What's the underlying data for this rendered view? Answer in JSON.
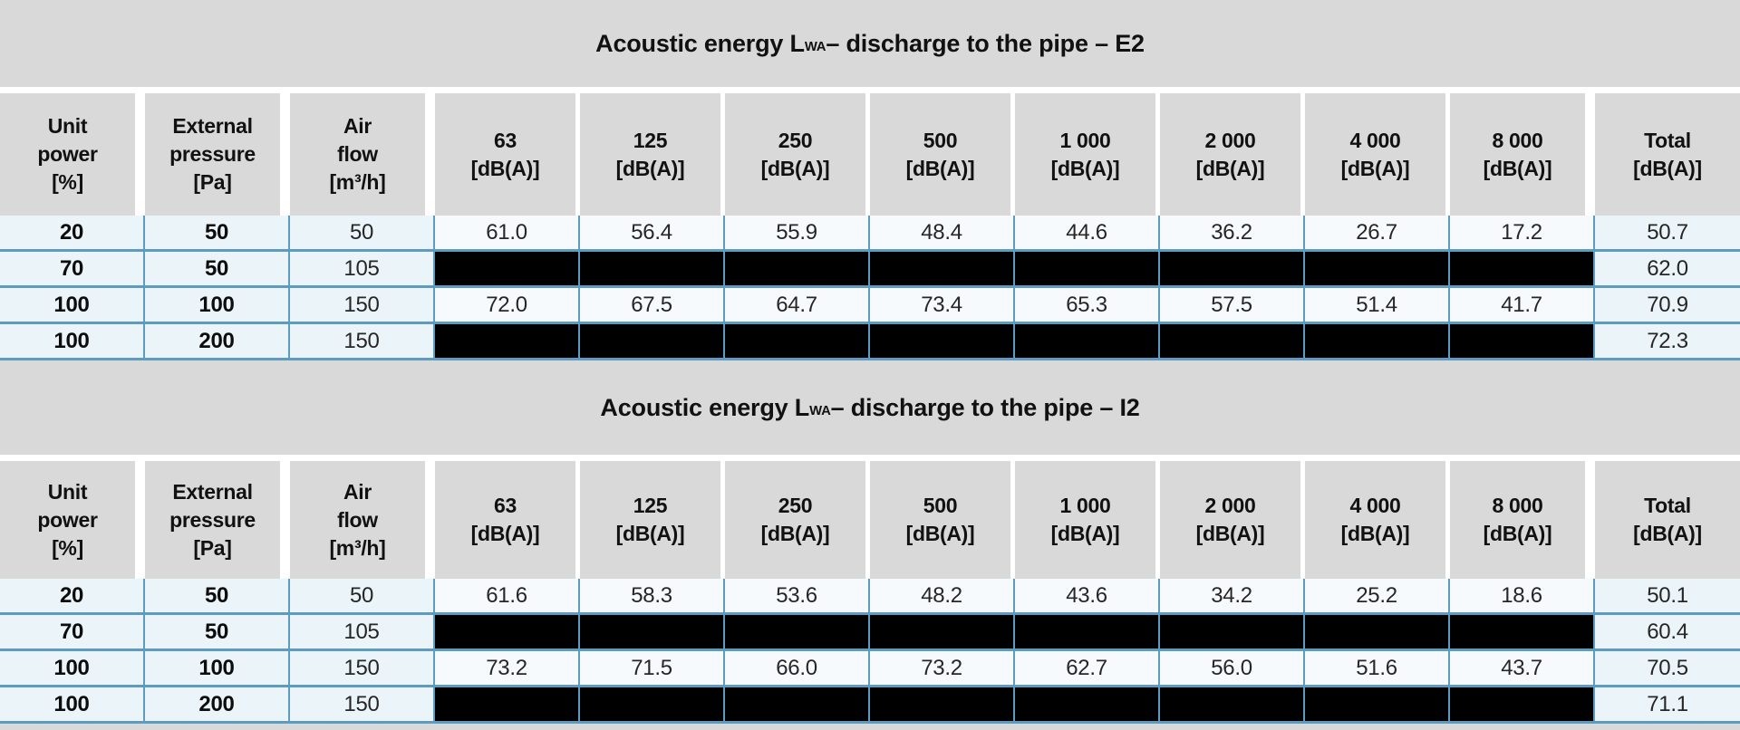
{
  "colors": {
    "page_background": "#d9d9d9",
    "grid_border": "#5b9cc0",
    "row_tint_background": "#ebf4f9",
    "row_light_background": "#f6fafc",
    "redacted_cell": "#000000"
  },
  "columns": [
    {
      "id": "unit-power",
      "lines": [
        "Unit",
        "power",
        "[%]"
      ]
    },
    {
      "id": "external-pressure",
      "lines": [
        "External",
        "pressure",
        "[Pa]"
      ]
    },
    {
      "id": "air-flow",
      "lines": [
        "Air",
        "flow",
        "[m³/h]"
      ]
    },
    {
      "id": "band-63",
      "lines": [
        "63",
        "[dB(A)]"
      ]
    },
    {
      "id": "band-125",
      "lines": [
        "125",
        "[dB(A)]"
      ]
    },
    {
      "id": "band-250",
      "lines": [
        "250",
        "[dB(A)]"
      ]
    },
    {
      "id": "band-500",
      "lines": [
        "500",
        "[dB(A)]"
      ]
    },
    {
      "id": "band-1000",
      "lines": [
        "1 000",
        "[dB(A)]"
      ]
    },
    {
      "id": "band-2000",
      "lines": [
        "2 000",
        "[dB(A)]"
      ]
    },
    {
      "id": "band-4000",
      "lines": [
        "4 000",
        "[dB(A)]"
      ]
    },
    {
      "id": "band-8000",
      "lines": [
        "8 000",
        "[dB(A)]"
      ]
    },
    {
      "id": "total",
      "lines": [
        "Total",
        "[dB(A)]"
      ]
    }
  ],
  "tables": [
    {
      "id": "e2",
      "title_pre": "Acoustic energy L",
      "title_sub": "WA",
      "title_post": " – discharge to the pipe – E2",
      "rows": [
        {
          "unit_power": "20",
          "external_pressure": "50",
          "air_flow": "50",
          "redacted": false,
          "bands": [
            "61.0",
            "56.4",
            "55.9",
            "48.4",
            "44.6",
            "36.2",
            "26.7",
            "17.2"
          ],
          "total": "50.7"
        },
        {
          "unit_power": "70",
          "external_pressure": "50",
          "air_flow": "105",
          "redacted": true,
          "bands": [
            "",
            "",
            "",
            "",
            "",
            "",
            "",
            ""
          ],
          "total": "62.0"
        },
        {
          "unit_power": "100",
          "external_pressure": "100",
          "air_flow": "150",
          "redacted": false,
          "bands": [
            "72.0",
            "67.5",
            "64.7",
            "73.4",
            "65.3",
            "57.5",
            "51.4",
            "41.7"
          ],
          "total": "70.9"
        },
        {
          "unit_power": "100",
          "external_pressure": "200",
          "air_flow": "150",
          "redacted": true,
          "bands": [
            "",
            "",
            "",
            "",
            "",
            "",
            "",
            ""
          ],
          "total": "72.3"
        }
      ]
    },
    {
      "id": "i2",
      "title_pre": "Acoustic energy L",
      "title_sub": "WA",
      "title_post": " – discharge to the pipe – I2",
      "rows": [
        {
          "unit_power": "20",
          "external_pressure": "50",
          "air_flow": "50",
          "redacted": false,
          "bands": [
            "61.6",
            "58.3",
            "53.6",
            "48.2",
            "43.6",
            "34.2",
            "25.2",
            "18.6"
          ],
          "total": "50.1"
        },
        {
          "unit_power": "70",
          "external_pressure": "50",
          "air_flow": "105",
          "redacted": true,
          "bands": [
            "",
            "",
            "",
            "",
            "",
            "",
            "",
            ""
          ],
          "total": "60.4"
        },
        {
          "unit_power": "100",
          "external_pressure": "100",
          "air_flow": "150",
          "redacted": false,
          "bands": [
            "73.2",
            "71.5",
            "66.0",
            "73.2",
            "62.7",
            "56.0",
            "51.6",
            "43.7"
          ],
          "total": "70.5"
        },
        {
          "unit_power": "100",
          "external_pressure": "200",
          "air_flow": "150",
          "redacted": true,
          "bands": [
            "",
            "",
            "",
            "",
            "",
            "",
            "",
            ""
          ],
          "total": "71.1"
        }
      ]
    }
  ],
  "layout_meta": {
    "title_band_heights": [
      96,
      104
    ],
    "header_heights": [
      135,
      130
    ]
  }
}
